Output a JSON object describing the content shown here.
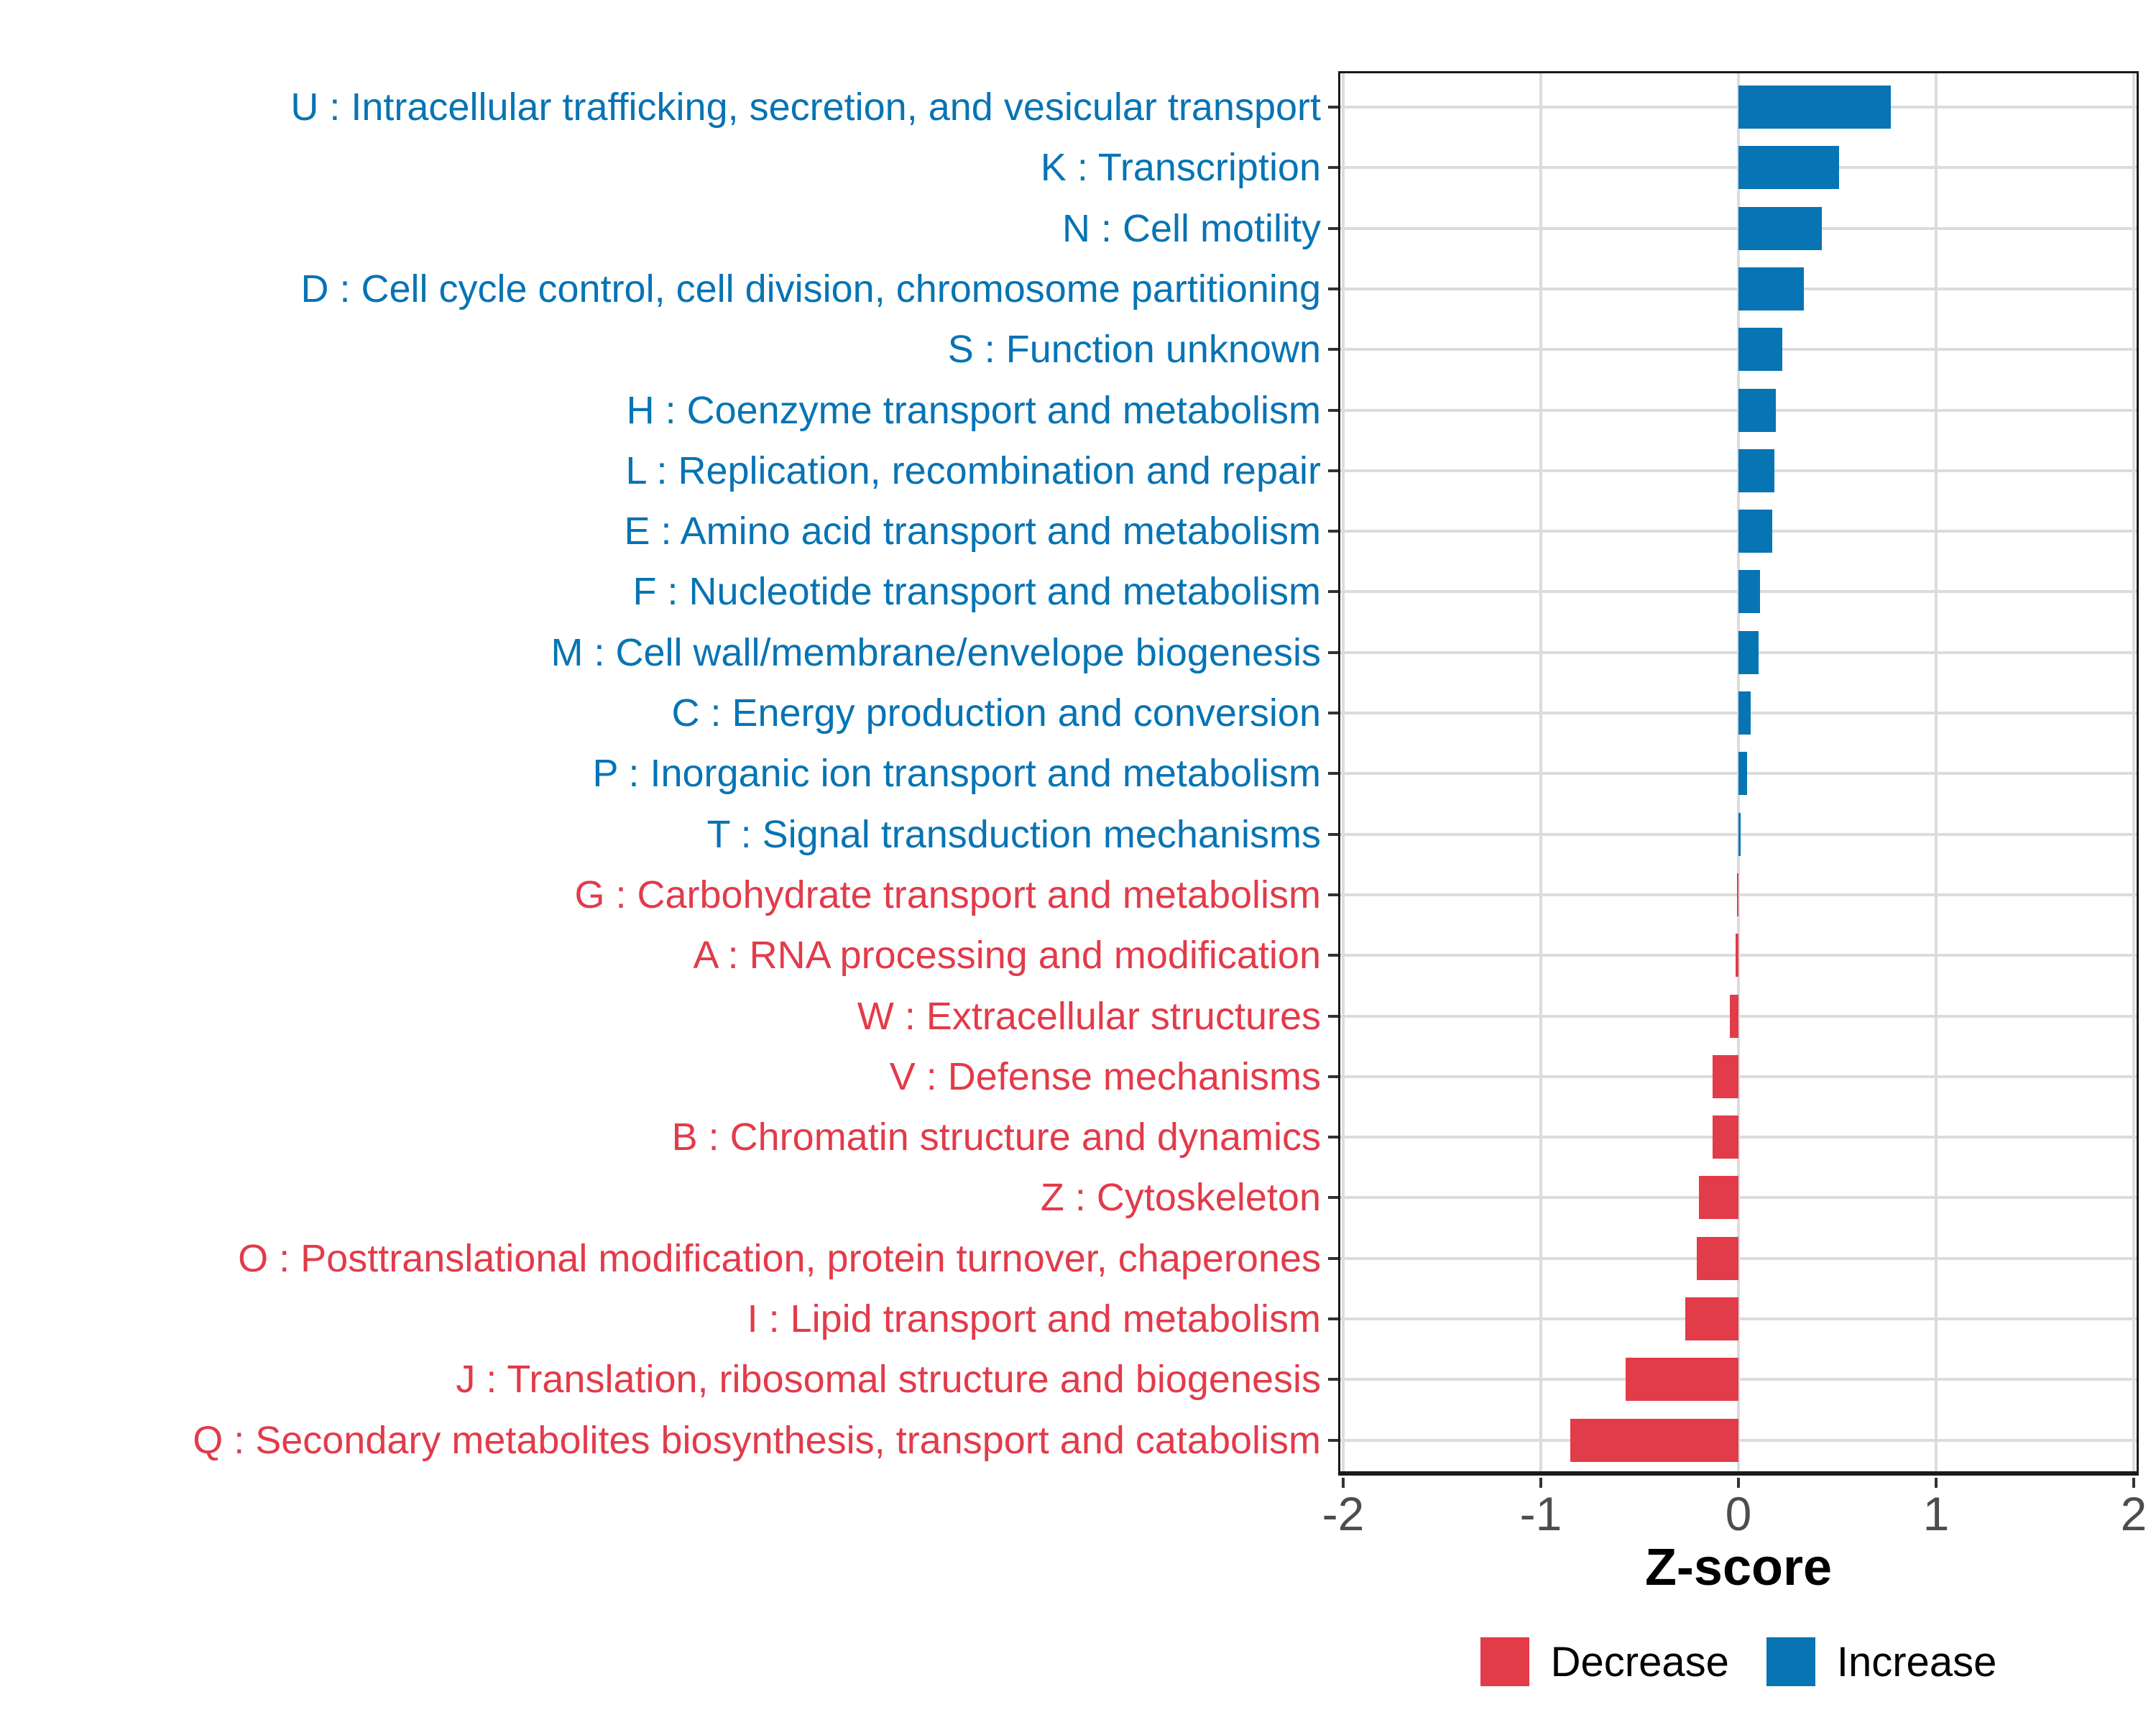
{
  "chart_data": {
    "type": "bar",
    "orientation": "horizontal",
    "title": "",
    "xlabel": "Z-score",
    "ylabel": "",
    "xlim": [
      -2,
      2
    ],
    "x_ticks": [
      -2,
      -1,
      0,
      1,
      2
    ],
    "x_tick_labels": [
      "-2",
      "-1",
      "0",
      "1",
      "2"
    ],
    "grid": "major-only",
    "legend_position": "bottom",
    "categories": [
      {
        "label": "U : Intracellular trafficking, secretion, and vesicular transport",
        "value": 0.77,
        "direction": "Increase"
      },
      {
        "label": "K : Transcription",
        "value": 0.51,
        "direction": "Increase"
      },
      {
        "label": "N : Cell motility",
        "value": 0.42,
        "direction": "Increase"
      },
      {
        "label": "D : Cell cycle control, cell division, chromosome partitioning",
        "value": 0.33,
        "direction": "Increase"
      },
      {
        "label": "S : Function unknown",
        "value": 0.22,
        "direction": "Increase"
      },
      {
        "label": "H : Coenzyme transport and metabolism",
        "value": 0.19,
        "direction": "Increase"
      },
      {
        "label": "L : Replication, recombination and repair",
        "value": 0.18,
        "direction": "Increase"
      },
      {
        "label": "E : Amino acid transport and metabolism",
        "value": 0.17,
        "direction": "Increase"
      },
      {
        "label": "F : Nucleotide transport and metabolism",
        "value": 0.11,
        "direction": "Increase"
      },
      {
        "label": "M : Cell wall/membrane/envelope biogenesis",
        "value": 0.1,
        "direction": "Increase"
      },
      {
        "label": "C : Energy production and conversion",
        "value": 0.06,
        "direction": "Increase"
      },
      {
        "label": "P : Inorganic ion transport and metabolism",
        "value": 0.045,
        "direction": "Increase"
      },
      {
        "label": "T : Signal transduction mechanisms",
        "value": 0.01,
        "direction": "Increase"
      },
      {
        "label": "G : Carbohydrate transport and metabolism",
        "value": -0.005,
        "direction": "Decrease"
      },
      {
        "label": "A : RNA processing and modification",
        "value": -0.015,
        "direction": "Decrease"
      },
      {
        "label": "W : Extracellular structures",
        "value": -0.045,
        "direction": "Decrease"
      },
      {
        "label": "V : Defense mechanisms",
        "value": -0.13,
        "direction": "Decrease"
      },
      {
        "label": "B : Chromatin structure and dynamics",
        "value": -0.13,
        "direction": "Decrease"
      },
      {
        "label": "Z : Cytoskeleton",
        "value": -0.2,
        "direction": "Decrease"
      },
      {
        "label": "O : Posttranslational modification, protein turnover, chaperones",
        "value": -0.21,
        "direction": "Decrease"
      },
      {
        "label": "I : Lipid transport and metabolism",
        "value": -0.27,
        "direction": "Decrease"
      },
      {
        "label": "J : Translation, ribosomal structure and biogenesis",
        "value": -0.57,
        "direction": "Decrease"
      },
      {
        "label": "Q : Secondary metabolites biosynthesis, transport and catabolism",
        "value": -0.85,
        "direction": "Decrease"
      }
    ],
    "legend": [
      {
        "label": "Decrease",
        "color": "#e23b4a"
      },
      {
        "label": "Increase",
        "color": "#0774b4"
      }
    ],
    "colors": {
      "increase": "#0774b4",
      "decrease": "#e23b4a",
      "gridline": "#dcdcdc",
      "panel_border": "#1a1a1a",
      "axis_text": "#4d4d4d",
      "tick_mark": "#333333"
    }
  }
}
